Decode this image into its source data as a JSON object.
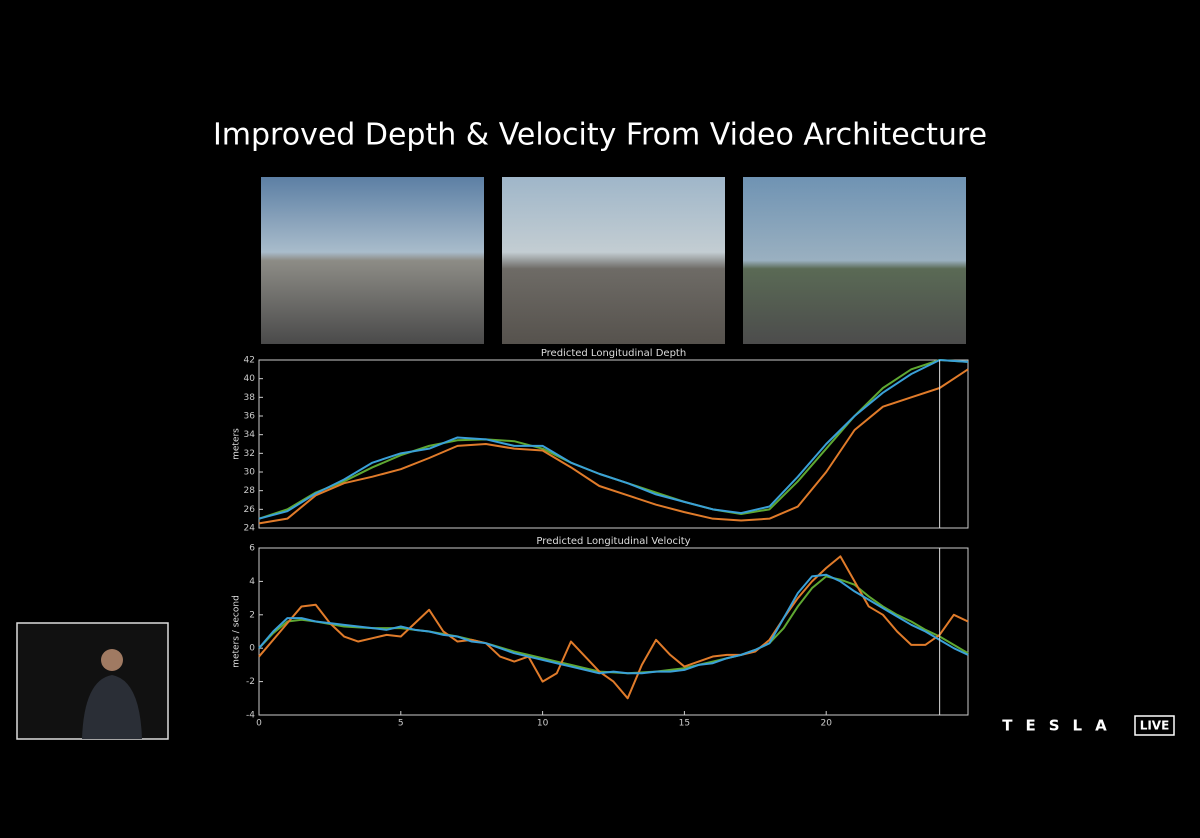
{
  "title": "Improved Depth & Velocity From Video Architecture",
  "brand": {
    "name": "TESLA",
    "badge": "LIVE"
  },
  "chart_data": [
    {
      "type": "line",
      "title": "Predicted Longitudinal Depth",
      "ylabel": "meters",
      "x": [
        0,
        1,
        2,
        3,
        4,
        5,
        6,
        7,
        8,
        9,
        10,
        11,
        12,
        13,
        14,
        15,
        16,
        17,
        18,
        19,
        20,
        21,
        22,
        23,
        24,
        25
      ],
      "xlim": [
        0,
        25
      ],
      "ylim": [
        24,
        42
      ],
      "yticks": [
        24,
        26,
        28,
        30,
        32,
        34,
        36,
        38,
        40,
        42
      ],
      "cursor_x": 24,
      "series": [
        {
          "color": "#5fa832",
          "values": [
            25,
            26,
            27.8,
            29,
            30.5,
            31.8,
            32.8,
            33.4,
            33.5,
            33.3,
            32.5,
            31,
            29.8,
            28.8,
            27.8,
            26.8,
            26,
            25.5,
            26,
            29,
            32.5,
            36,
            39,
            41,
            42,
            41.8
          ]
        },
        {
          "color": "#e07b2a",
          "values": [
            24.5,
            25,
            27.5,
            28.8,
            29.5,
            30.3,
            31.5,
            32.8,
            33,
            32.5,
            32.3,
            30.5,
            28.5,
            27.5,
            26.5,
            25.7,
            25,
            24.8,
            25,
            26.3,
            30,
            34.5,
            37,
            38,
            39,
            41
          ]
        },
        {
          "color": "#3aa0d8",
          "values": [
            25,
            25.8,
            27.7,
            29.2,
            31,
            32,
            32.5,
            33.7,
            33.5,
            32.8,
            32.8,
            31,
            29.8,
            28.8,
            27.6,
            26.8,
            26,
            25.6,
            26.3,
            29.5,
            33,
            36,
            38.5,
            40.5,
            42,
            41.8
          ]
        }
      ]
    },
    {
      "type": "line",
      "title": "Predicted Longitudinal Velocity",
      "ylabel": "meters / second",
      "x": [
        0,
        0.5,
        1,
        1.5,
        2,
        2.5,
        3,
        3.5,
        4,
        4.5,
        5,
        5.5,
        6,
        6.5,
        7,
        7.5,
        8,
        8.5,
        9,
        9.5,
        10,
        10.5,
        11,
        11.5,
        12,
        12.5,
        13,
        13.5,
        14,
        14.5,
        15,
        15.5,
        16,
        16.5,
        17,
        17.5,
        18,
        18.5,
        19,
        19.5,
        20,
        20.5,
        21,
        21.5,
        22,
        22.5,
        23,
        23.5,
        24,
        24.5,
        25
      ],
      "xlim": [
        0,
        25
      ],
      "xticks": [
        0,
        5,
        10,
        15,
        20
      ],
      "ylim": [
        -4,
        6
      ],
      "yticks": [
        -4,
        -2,
        0,
        2,
        4,
        6
      ],
      "cursor_x": 24,
      "series": [
        {
          "color": "#5fa832",
          "values": [
            0,
            0.9,
            1.6,
            1.7,
            1.6,
            1.45,
            1.3,
            1.25,
            1.2,
            1.2,
            1.2,
            1.1,
            1.0,
            0.85,
            0.7,
            0.5,
            0.3,
            0.05,
            -0.2,
            -0.4,
            -0.6,
            -0.8,
            -1.0,
            -1.2,
            -1.4,
            -1.45,
            -1.5,
            -1.45,
            -1.4,
            -1.3,
            -1.2,
            -1.0,
            -0.8,
            -0.6,
            -0.4,
            -0.1,
            0.3,
            1.2,
            2.5,
            3.6,
            4.3,
            4.1,
            3.8,
            3.1,
            2.5,
            2.0,
            1.6,
            1.1,
            0.7,
            0.2,
            -0.3
          ]
        },
        {
          "color": "#e07b2a",
          "values": [
            -0.5,
            0.5,
            1.5,
            2.5,
            2.6,
            1.5,
            0.7,
            0.4,
            0.6,
            0.8,
            0.7,
            1.5,
            2.3,
            1.0,
            0.4,
            0.5,
            0.3,
            -0.5,
            -0.8,
            -0.5,
            -2.0,
            -1.5,
            0.4,
            -0.5,
            -1.4,
            -2.0,
            -3.0,
            -1.0,
            0.5,
            -0.4,
            -1.1,
            -0.8,
            -0.5,
            -0.4,
            -0.4,
            -0.2,
            0.5,
            1.8,
            3.0,
            4.0,
            4.8,
            5.5,
            4.0,
            2.5,
            2.0,
            1.0,
            0.2,
            0.2,
            0.8,
            2.0,
            1.6
          ]
        },
        {
          "color": "#3aa0d8",
          "values": [
            0,
            1.0,
            1.8,
            1.8,
            1.6,
            1.5,
            1.4,
            1.3,
            1.2,
            1.1,
            1.3,
            1.1,
            1.0,
            0.8,
            0.7,
            0.4,
            0.3,
            0.0,
            -0.3,
            -0.5,
            -0.7,
            -0.9,
            -1.1,
            -1.3,
            -1.5,
            -1.4,
            -1.5,
            -1.5,
            -1.4,
            -1.4,
            -1.3,
            -1.0,
            -0.9,
            -0.6,
            -0.4,
            -0.1,
            0.3,
            1.8,
            3.3,
            4.3,
            4.4,
            4.0,
            3.4,
            2.9,
            2.4,
            1.9,
            1.4,
            1.0,
            0.5,
            0.0,
            -0.4
          ]
        }
      ]
    }
  ]
}
